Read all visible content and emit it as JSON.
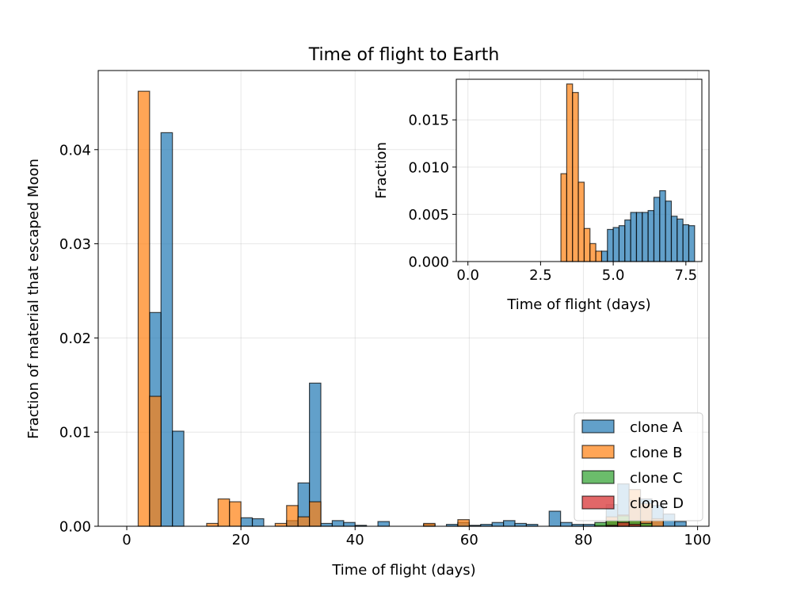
{
  "chart_data": [
    {
      "type": "bar",
      "title": "Time of flight to Earth",
      "xlabel": "Time of flight (days)",
      "ylabel": "Fraction of material that escaped Moon",
      "xlim": [
        -5,
        102
      ],
      "ylim": [
        0,
        0.0484
      ],
      "xticks": [
        0,
        20,
        40,
        60,
        80,
        100
      ],
      "xtick_labels": [
        "0",
        "20",
        "40",
        "60",
        "80",
        "100"
      ],
      "yticks": [
        0,
        0.01,
        0.02,
        0.03,
        0.04
      ],
      "ytick_labels": [
        "0.00",
        "0.01",
        "0.02",
        "0.03",
        "0.04"
      ],
      "grid": true,
      "legend_position": "lower-right",
      "bin_width": 2,
      "series": [
        {
          "name": "clone A",
          "color": "#1f77b4",
          "bins": [
            {
              "x": 4,
              "y": 0.0227
            },
            {
              "x": 6,
              "y": 0.0418
            },
            {
              "x": 8,
              "y": 0.0101
            },
            {
              "x": 20,
              "y": 0.0009
            },
            {
              "x": 22,
              "y": 0.0008
            },
            {
              "x": 28,
              "y": 0.0006
            },
            {
              "x": 30,
              "y": 0.0046
            },
            {
              "x": 32,
              "y": 0.0152
            },
            {
              "x": 34,
              "y": 0.0003
            },
            {
              "x": 36,
              "y": 0.0006
            },
            {
              "x": 38,
              "y": 0.0004
            },
            {
              "x": 40,
              "y": 0.0001
            },
            {
              "x": 44,
              "y": 0.0005
            },
            {
              "x": 52,
              "y": 0.0002
            },
            {
              "x": 56,
              "y": 0.0002
            },
            {
              "x": 58,
              "y": 0.0004
            },
            {
              "x": 60,
              "y": 0.0001
            },
            {
              "x": 62,
              "y": 0.0002
            },
            {
              "x": 64,
              "y": 0.0004
            },
            {
              "x": 66,
              "y": 0.0006
            },
            {
              "x": 68,
              "y": 0.0003
            },
            {
              "x": 70,
              "y": 0.0002
            },
            {
              "x": 74,
              "y": 0.0016
            },
            {
              "x": 76,
              "y": 0.0004
            },
            {
              "x": 78,
              "y": 0.0002
            },
            {
              "x": 80,
              "y": 0.0002
            },
            {
              "x": 84,
              "y": 0.0023
            },
            {
              "x": 86,
              "y": 0.0045
            },
            {
              "x": 88,
              "y": 0.0028
            },
            {
              "x": 90,
              "y": 0.0029
            },
            {
              "x": 92,
              "y": 0.0022
            },
            {
              "x": 94,
              "y": 0.0013
            },
            {
              "x": 96,
              "y": 0.0005
            }
          ]
        },
        {
          "name": "clone B",
          "color": "#ff7f0e",
          "bins": [
            {
              "x": 2,
              "y": 0.0462
            },
            {
              "x": 4,
              "y": 0.0138
            },
            {
              "x": 14,
              "y": 0.0003
            },
            {
              "x": 16,
              "y": 0.0029
            },
            {
              "x": 18,
              "y": 0.0026
            },
            {
              "x": 26,
              "y": 0.0003
            },
            {
              "x": 28,
              "y": 0.0022
            },
            {
              "x": 30,
              "y": 0.001
            },
            {
              "x": 32,
              "y": 0.0026
            },
            {
              "x": 52,
              "y": 0.0003
            },
            {
              "x": 58,
              "y": 0.0007
            },
            {
              "x": 82,
              "y": 0.0001
            },
            {
              "x": 84,
              "y": 0.001
            },
            {
              "x": 86,
              "y": 0.0012
            },
            {
              "x": 88,
              "y": 0.0039
            },
            {
              "x": 90,
              "y": 0.0024
            },
            {
              "x": 92,
              "y": 0.0008
            }
          ]
        },
        {
          "name": "clone C",
          "color": "#2ca02c",
          "bins": [
            {
              "x": 82,
              "y": 0.0004
            },
            {
              "x": 84,
              "y": 0.0006
            },
            {
              "x": 86,
              "y": 0.0011
            },
            {
              "x": 88,
              "y": 0.0006
            },
            {
              "x": 90,
              "y": 0.0003
            }
          ]
        },
        {
          "name": "clone D",
          "color": "#d62728",
          "bins": [
            {
              "x": 84,
              "y": 0.0001
            },
            {
              "x": 86,
              "y": 0.0004
            },
            {
              "x": 88,
              "y": 0.0002
            }
          ]
        }
      ]
    },
    {
      "type": "bar",
      "title": "",
      "xlabel": "Time of flight (days)",
      "ylabel": "Fraction",
      "xlim": [
        -0.4,
        8.05
      ],
      "ylim": [
        0,
        0.0193
      ],
      "xticks": [
        0,
        2.5,
        5,
        7.5
      ],
      "xtick_labels": [
        "0.0",
        "2.5",
        "5.0",
        "7.5"
      ],
      "yticks": [
        0,
        0.005,
        0.01,
        0.015
      ],
      "ytick_labels": [
        "0.000",
        "0.005",
        "0.010",
        "0.015"
      ],
      "grid": true,
      "bin_width": 0.2,
      "series": [
        {
          "name": "clone A",
          "color": "#1f77b4",
          "bins": [
            {
              "x": 4.6,
              "y": 0.0011
            },
            {
              "x": 4.8,
              "y": 0.0034
            },
            {
              "x": 5.0,
              "y": 0.0036
            },
            {
              "x": 5.2,
              "y": 0.0038
            },
            {
              "x": 5.4,
              "y": 0.0044
            },
            {
              "x": 5.6,
              "y": 0.0052
            },
            {
              "x": 5.8,
              "y": 0.0052
            },
            {
              "x": 6.0,
              "y": 0.0052
            },
            {
              "x": 6.2,
              "y": 0.0054
            },
            {
              "x": 6.4,
              "y": 0.0068
            },
            {
              "x": 6.6,
              "y": 0.0075
            },
            {
              "x": 6.8,
              "y": 0.0064
            },
            {
              "x": 7.0,
              "y": 0.0048
            },
            {
              "x": 7.2,
              "y": 0.0045
            },
            {
              "x": 7.4,
              "y": 0.0039
            },
            {
              "x": 7.6,
              "y": 0.0038
            }
          ]
        },
        {
          "name": "clone B",
          "color": "#ff7f0e",
          "bins": [
            {
              "x": 3.2,
              "y": 0.0093
            },
            {
              "x": 3.4,
              "y": 0.0188
            },
            {
              "x": 3.6,
              "y": 0.0179
            },
            {
              "x": 3.8,
              "y": 0.0084
            },
            {
              "x": 4.0,
              "y": 0.0035
            },
            {
              "x": 4.2,
              "y": 0.0019
            },
            {
              "x": 4.4,
              "y": 0.0011
            }
          ]
        }
      ]
    }
  ]
}
